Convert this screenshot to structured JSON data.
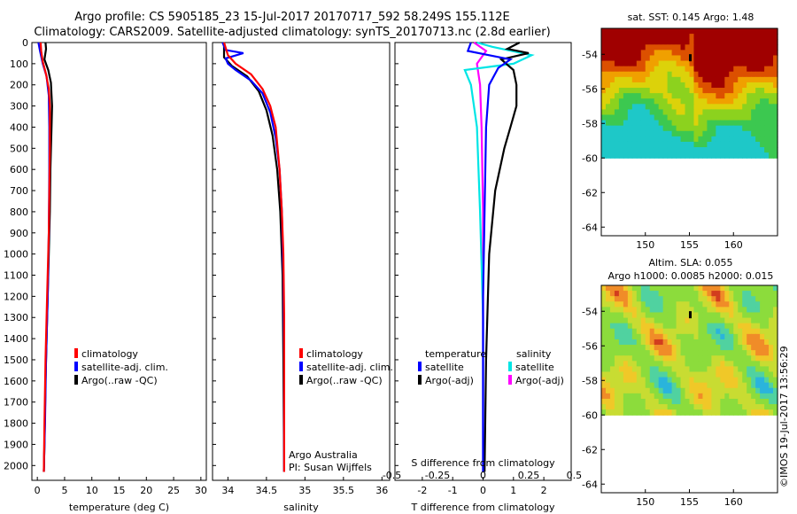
{
  "header": {
    "line1": "Argo profile: CS 5905185_23 15-Jul-2017 20170717_592 58.249S 155.112E",
    "line2": "Climatology: CARS2009. Satellite-adjusted climatology: synTS_20170713.nc (2.8d earlier)"
  },
  "credit": "©IMOS 19-Jul-2017 13:56:29",
  "colors": {
    "climatology": "#ff0000",
    "satellite": "#0000ff",
    "argo": "#000000",
    "sat_salinity": "#00e5e5",
    "argo_salinity": "#ff00ff"
  },
  "chart_data": [
    {
      "type": "line",
      "panel": "temperature",
      "xlabel": "temperature (deg C)",
      "ylabel": "",
      "xlim": [
        -1,
        31
      ],
      "ylim": [
        2070,
        0
      ],
      "xticks": [
        "0",
        "5",
        "10",
        "15",
        "20",
        "25",
        "30"
      ],
      "yticks": [
        "0",
        "100",
        "200",
        "300",
        "400",
        "500",
        "600",
        "700",
        "800",
        "900",
        "1000",
        "1100",
        "1200",
        "1300",
        "1400",
        "1500",
        "1600",
        "1700",
        "1800",
        "1900",
        "2000"
      ],
      "legend": [
        "climatology",
        "satellite-adj. clim.",
        "Argo(..raw -QC)"
      ],
      "series": [
        {
          "name": "climatology",
          "x": [
            0.6,
            0.7,
            1.0,
            1.6,
            2.1,
            2.3,
            2.3,
            2.2,
            2.1,
            1.8,
            1.5,
            1.3,
            1.2
          ],
          "y": [
            0,
            40,
            90,
            150,
            220,
            300,
            500,
            700,
            900,
            1200,
            1500,
            1800,
            2030
          ]
        },
        {
          "name": "satellite-adj. clim.",
          "x": [
            0.2,
            0.5,
            1.0,
            1.7,
            2.1,
            2.2,
            2.2,
            2.1,
            1.9,
            1.6,
            1.4,
            1.2
          ],
          "y": [
            0,
            40,
            100,
            160,
            250,
            400,
            600,
            900,
            1200,
            1500,
            1800,
            2030
          ]
        },
        {
          "name": "Argo(..raw -QC)",
          "x": [
            1.5,
            1.6,
            1.3,
            2.0,
            2.5,
            2.7,
            2.6,
            2.4,
            2.3,
            2.1,
            1.8,
            1.5,
            1.3,
            1.2
          ],
          "y": [
            0,
            30,
            80,
            130,
            190,
            300,
            400,
            600,
            800,
            1000,
            1300,
            1600,
            1900,
            2030
          ]
        }
      ]
    },
    {
      "type": "line",
      "panel": "salinity",
      "xlabel": "salinity",
      "xlim": [
        33.8,
        36.1
      ],
      "ylim": [
        2070,
        0
      ],
      "xticks": [
        "34",
        "34.5",
        "35",
        "35.5",
        "36"
      ],
      "legend": [
        "climatology",
        "satellite-adj. clim.",
        "Argo(..raw -QC)"
      ],
      "annotations": [
        "Argo Australia",
        "PI: Susan Wijffels"
      ],
      "series": [
        {
          "name": "climatology",
          "x": [
            33.95,
            34.0,
            34.1,
            34.3,
            34.45,
            34.55,
            34.62,
            34.67,
            34.7,
            34.72,
            34.73,
            34.73,
            34.73
          ],
          "y": [
            0,
            60,
            100,
            150,
            220,
            300,
            400,
            600,
            800,
            1000,
            1300,
            1700,
            2030
          ]
        },
        {
          "name": "satellite-adj. clim.",
          "x": [
            33.93,
            33.97,
            34.2,
            33.97,
            34.0,
            34.1,
            34.3,
            34.45,
            34.55,
            34.62,
            34.67,
            34.7,
            34.72,
            34.73,
            34.73
          ],
          "y": [
            0,
            35,
            50,
            75,
            100,
            130,
            180,
            240,
            330,
            450,
            600,
            800,
            1100,
            1500,
            2030
          ]
        },
        {
          "name": "Argo(..raw -QC)",
          "x": [
            33.95,
            33.95,
            34.05,
            34.25,
            34.4,
            34.5,
            34.58,
            34.64,
            34.68,
            34.71,
            34.72,
            34.73
          ],
          "y": [
            0,
            70,
            110,
            160,
            230,
            320,
            440,
            600,
            800,
            1100,
            1500,
            2030
          ]
        }
      ]
    },
    {
      "type": "line",
      "panel": "difference",
      "xlabel": "T difference from climatology",
      "xlabel_top": "S difference from climatology",
      "xlim": [
        -2.9,
        2.9
      ],
      "ylim": [
        2070,
        0
      ],
      "xticks": [
        "-2",
        "-1",
        "0",
        "1",
        "2"
      ],
      "xticks_top": [
        "-0.5",
        "-0.25",
        "0",
        "0.25",
        "0.5"
      ],
      "legend_headers": [
        "temperature",
        "salinity"
      ],
      "legend": [
        "satellite",
        "Argo(-adj)",
        "satellite",
        "Argo(-adj)"
      ],
      "series": [
        {
          "name": "satellite",
          "variable": "temperature",
          "x": [
            -0.4,
            -0.5,
            0.2,
            0.9,
            0.5,
            0.2,
            0.1,
            0.05,
            0.0,
            0.0,
            0.0
          ],
          "y": [
            0,
            40,
            60,
            80,
            120,
            200,
            400,
            800,
            1200,
            1600,
            2030
          ]
        },
        {
          "name": "Argo(-adj)",
          "variable": "temperature",
          "x": [
            1.2,
            0.8,
            1.5,
            0.6,
            1.0,
            1.1,
            1.1,
            0.9,
            0.7,
            0.4,
            0.2,
            0.1,
            0.05
          ],
          "y": [
            0,
            30,
            50,
            80,
            130,
            200,
            300,
            400,
            500,
            700,
            1000,
            1500,
            2030
          ]
        },
        {
          "name": "satellite",
          "variable": "salinity",
          "x": [
            -0.2,
            0.3,
            1.6,
            1.0,
            -0.6,
            -0.4,
            -0.2,
            -0.1,
            0.0,
            0.0
          ],
          "y": [
            0,
            20,
            60,
            100,
            130,
            200,
            400,
            800,
            1300,
            2030
          ]
        },
        {
          "name": "Argo(-adj)",
          "variable": "salinity",
          "x": [
            -0.3,
            0.1,
            -0.2,
            -0.1,
            -0.05,
            0.0,
            0.0
          ],
          "y": [
            0,
            40,
            100,
            200,
            400,
            800,
            2030
          ]
        }
      ]
    },
    {
      "type": "heatmap",
      "panel": "sst-map",
      "title": "sat. SST: 0.145 Argo: 1.48",
      "xticks": [
        "150",
        "155",
        "160"
      ],
      "yticks": [
        "-54",
        "-56",
        "-58",
        "-60",
        "-62",
        "-64"
      ],
      "xlim": [
        145,
        165
      ],
      "ylim": [
        -64.5,
        -52.5
      ],
      "data_lat_min": -60
    },
    {
      "type": "heatmap",
      "panel": "sla-map",
      "title_line1": "Altim. SLA: 0.055",
      "title_line2": "Argo h1000: 0.0085 h2000: 0.015",
      "xticks": [
        "150",
        "155",
        "160"
      ],
      "yticks": [
        "-54",
        "-56",
        "-58",
        "-60",
        "-62",
        "-64"
      ],
      "xlim": [
        145,
        165
      ],
      "ylim": [
        -64.5,
        -52.5
      ],
      "data_lat_min": -60
    }
  ]
}
